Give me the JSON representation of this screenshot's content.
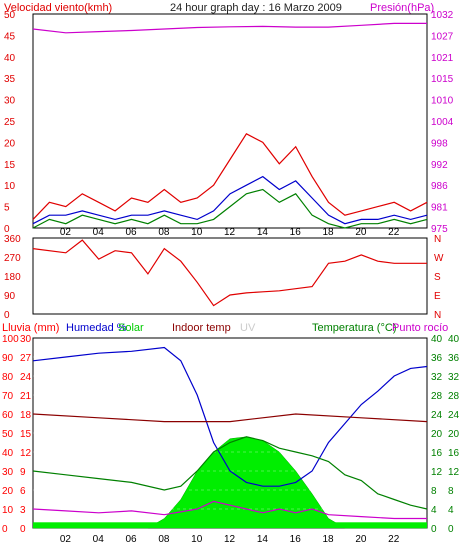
{
  "chart_data": [
    {
      "type": "line",
      "title": "24 hour graph day : 16 Marzo 2009",
      "ylabel_left": "Velocidad viento(kmh)",
      "ylabel_right": "Presión(hPa)",
      "x_ticks": [
        "02",
        "04",
        "06",
        "08",
        "10",
        "12",
        "14",
        "16",
        "18",
        "20",
        "22"
      ],
      "y_left_ticks": [
        "50",
        "45",
        "40",
        "35",
        "30",
        "25",
        "20",
        "15",
        "10",
        "5",
        "0"
      ],
      "y_right_ticks": [
        "1032",
        "1027",
        "1021",
        "1015",
        "1010",
        "1004",
        "998",
        "992",
        "986",
        "981",
        "975"
      ],
      "ylim_left": [
        0,
        50
      ],
      "ylim_right": [
        975,
        1032
      ],
      "series": [
        {
          "axis": "right",
          "color": "#cc00cc",
          "points": [
            [
              0,
              1028
            ],
            [
              2,
              1027
            ],
            [
              4,
              1027.3
            ],
            [
              6,
              1027.6
            ],
            [
              8,
              1028
            ],
            [
              10,
              1028.4
            ],
            [
              12,
              1028.6
            ],
            [
              14,
              1028.7
            ],
            [
              16,
              1028.5
            ],
            [
              18,
              1028.5
            ],
            [
              20,
              1029
            ],
            [
              22,
              1029.5
            ],
            [
              24,
              1029.5
            ]
          ]
        },
        {
          "axis": "left",
          "color": "#e00000",
          "points": [
            [
              0,
              2
            ],
            [
              1,
              6
            ],
            [
              2,
              5
            ],
            [
              3,
              8
            ],
            [
              4,
              6
            ],
            [
              5,
              4
            ],
            [
              6,
              7
            ],
            [
              7,
              6
            ],
            [
              8,
              9
            ],
            [
              9,
              6
            ],
            [
              10,
              7
            ],
            [
              11,
              10
            ],
            [
              12,
              16
            ],
            [
              13,
              22
            ],
            [
              14,
              20
            ],
            [
              15,
              15
            ],
            [
              16,
              19
            ],
            [
              17,
              12
            ],
            [
              18,
              6
            ],
            [
              19,
              3
            ],
            [
              20,
              4
            ],
            [
              21,
              5
            ],
            [
              22,
              6
            ],
            [
              23,
              4
            ],
            [
              24,
              6
            ]
          ]
        },
        {
          "axis": "left",
          "color": "#0000cc",
          "points": [
            [
              0,
              1
            ],
            [
              1,
              3
            ],
            [
              2,
              3
            ],
            [
              3,
              4
            ],
            [
              4,
              3
            ],
            [
              5,
              2
            ],
            [
              6,
              3
            ],
            [
              7,
              3
            ],
            [
              8,
              4
            ],
            [
              9,
              3
            ],
            [
              10,
              2
            ],
            [
              11,
              4
            ],
            [
              12,
              8
            ],
            [
              13,
              10
            ],
            [
              14,
              12
            ],
            [
              15,
              9
            ],
            [
              16,
              11
            ],
            [
              17,
              7
            ],
            [
              18,
              3
            ],
            [
              19,
              1
            ],
            [
              20,
              2
            ],
            [
              21,
              2
            ],
            [
              22,
              3
            ],
            [
              23,
              2
            ],
            [
              24,
              3
            ]
          ]
        },
        {
          "axis": "left",
          "color": "#008000",
          "points": [
            [
              0,
              0
            ],
            [
              1,
              2
            ],
            [
              2,
              1
            ],
            [
              3,
              3
            ],
            [
              4,
              2
            ],
            [
              5,
              1
            ],
            [
              6,
              2
            ],
            [
              7,
              1
            ],
            [
              8,
              3
            ],
            [
              9,
              1
            ],
            [
              10,
              1
            ],
            [
              11,
              2
            ],
            [
              12,
              5
            ],
            [
              13,
              8
            ],
            [
              14,
              9
            ],
            [
              15,
              6
            ],
            [
              16,
              8
            ],
            [
              17,
              3
            ],
            [
              18,
              1
            ],
            [
              19,
              0
            ],
            [
              20,
              1
            ],
            [
              21,
              1
            ],
            [
              22,
              2
            ],
            [
              23,
              1
            ],
            [
              24,
              2
            ]
          ]
        }
      ]
    },
    {
      "type": "line",
      "y_left_ticks": [
        "360",
        "270",
        "180",
        "90",
        "0"
      ],
      "y_right_ticks": [
        "N",
        "W",
        "S",
        "E",
        "N"
      ],
      "ylim": [
        0,
        360
      ],
      "series": [
        {
          "color": "#e00000",
          "points": [
            [
              0,
              310
            ],
            [
              2,
              290
            ],
            [
              3,
              350
            ],
            [
              4,
              260
            ],
            [
              5,
              300
            ],
            [
              6,
              290
            ],
            [
              7,
              190
            ],
            [
              8,
              310
            ],
            [
              9,
              250
            ],
            [
              10,
              150
            ],
            [
              11,
              40
            ],
            [
              12,
              90
            ],
            [
              13,
              100
            ],
            [
              14,
              105
            ],
            [
              15,
              110
            ],
            [
              16,
              120
            ],
            [
              17,
              130
            ],
            [
              18,
              240
            ],
            [
              19,
              250
            ],
            [
              20,
              280
            ],
            [
              21,
              250
            ],
            [
              22,
              240
            ],
            [
              23,
              240
            ],
            [
              24,
              240
            ]
          ]
        }
      ]
    },
    {
      "type": "area",
      "legend": [
        {
          "label": "Lluvia (mm)",
          "color": "#ff0000"
        },
        {
          "label": "Humedad %",
          "color": "#0000cc"
        },
        {
          "label": "Solar",
          "color": "#00cc00"
        },
        {
          "label": "Indoor temp",
          "color": "#8b0000"
        },
        {
          "label": "UV",
          "color": "#e0e0e0"
        },
        {
          "label": "Temperatura (°C)",
          "color": "#008000"
        },
        {
          "label": "Punto rocío",
          "color": "#cc00cc"
        }
      ],
      "y_left_ticks": [
        "100",
        "90",
        "80",
        "70",
        "60",
        "50",
        "40",
        "30",
        "20",
        "10",
        "0"
      ],
      "y_left2_ticks": [
        "30",
        "27",
        "24",
        "21",
        "18",
        "15",
        "12",
        "9",
        "6",
        "3",
        "0"
      ],
      "y_right_ticks": [
        "40",
        "36",
        "32",
        "28",
        "24",
        "20",
        "16",
        "12",
        "8",
        "4",
        "0"
      ],
      "y_right2_ticks": [
        "40",
        "36",
        "32",
        "28",
        "24",
        "20",
        "16",
        "12",
        "8",
        "4",
        "0"
      ],
      "ylim": [
        0,
        100
      ],
      "series": [
        {
          "name": "Humedad",
          "color": "#0000cc",
          "points": [
            [
              0,
              88
            ],
            [
              2,
              90
            ],
            [
              4,
              92
            ],
            [
              6,
              93
            ],
            [
              8,
              95
            ],
            [
              9,
              88
            ],
            [
              10,
              70
            ],
            [
              11,
              45
            ],
            [
              12,
              30
            ],
            [
              13,
              24
            ],
            [
              14,
              22
            ],
            [
              15,
              22
            ],
            [
              16,
              24
            ],
            [
              17,
              30
            ],
            [
              18,
              45
            ],
            [
              19,
              55
            ],
            [
              20,
              65
            ],
            [
              21,
              72
            ],
            [
              22,
              80
            ],
            [
              23,
              84
            ],
            [
              24,
              85
            ]
          ]
        },
        {
          "name": "Indoor temp",
          "color": "#8b0000",
          "points": [
            [
              0,
              60
            ],
            [
              4,
              58
            ],
            [
              8,
              56
            ],
            [
              12,
              56
            ],
            [
              16,
              60
            ],
            [
              20,
              58
            ],
            [
              24,
              56
            ]
          ]
        },
        {
          "name": "Temperatura",
          "color": "#008000",
          "points": [
            [
              0,
              30
            ],
            [
              2,
              28
            ],
            [
              4,
              26
            ],
            [
              6,
              24
            ],
            [
              8,
              20
            ],
            [
              9,
              22
            ],
            [
              10,
              30
            ],
            [
              11,
              40
            ],
            [
              12,
              45
            ],
            [
              13,
              48
            ],
            [
              14,
              46
            ],
            [
              15,
              42
            ],
            [
              16,
              40
            ],
            [
              17,
              38
            ],
            [
              18,
              35
            ],
            [
              19,
              28
            ],
            [
              20,
              25
            ],
            [
              21,
              18
            ],
            [
              22,
              15
            ],
            [
              23,
              12
            ],
            [
              24,
              10
            ]
          ]
        },
        {
          "name": "Punto rocío",
          "color": "#cc00cc",
          "points": [
            [
              0,
              10
            ],
            [
              2,
              9
            ],
            [
              4,
              8
            ],
            [
              6,
              9
            ],
            [
              8,
              7
            ],
            [
              10,
              10
            ],
            [
              11,
              14
            ],
            [
              12,
              12
            ],
            [
              13,
              10
            ],
            [
              14,
              8
            ],
            [
              15,
              10
            ],
            [
              16,
              8
            ],
            [
              17,
              10
            ],
            [
              18,
              7
            ],
            [
              20,
              6
            ],
            [
              22,
              5
            ],
            [
              24,
              5
            ]
          ]
        }
      ],
      "solar_area": {
        "color": "#00ee00",
        "points": [
          [
            0,
            0
          ],
          [
            7,
            0
          ],
          [
            8,
            5
          ],
          [
            9,
            15
          ],
          [
            10,
            30
          ],
          [
            11,
            40
          ],
          [
            12,
            47
          ],
          [
            13,
            48
          ],
          [
            14,
            46
          ],
          [
            15,
            40
          ],
          [
            16,
            30
          ],
          [
            17,
            18
          ],
          [
            18,
            5
          ],
          [
            19,
            0
          ],
          [
            24,
            0
          ]
        ]
      },
      "baseline_area": {
        "color": "#00ee00",
        "height": 3
      }
    }
  ]
}
